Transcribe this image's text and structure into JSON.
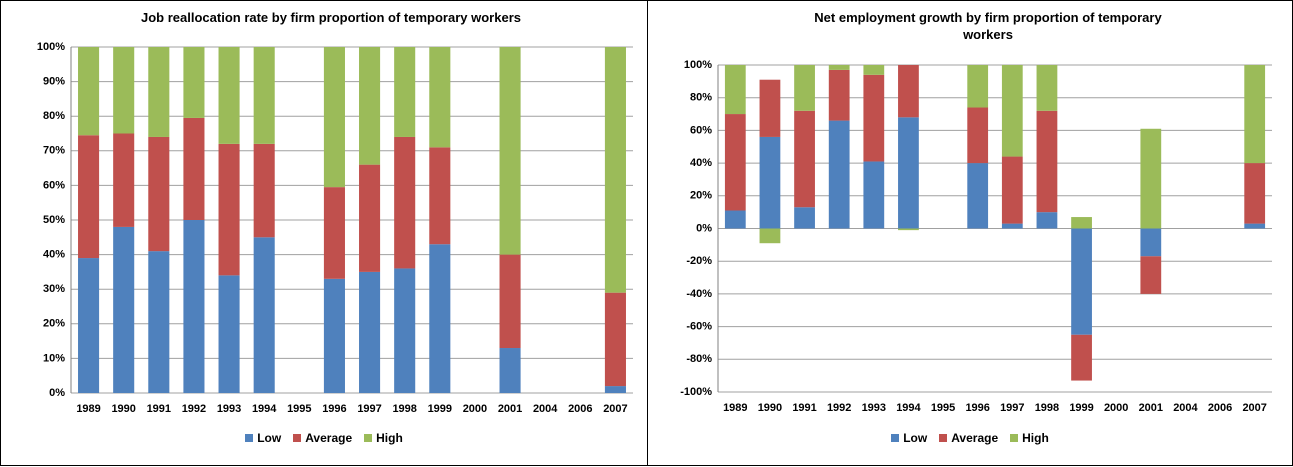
{
  "chart_data": [
    {
      "type": "bar",
      "stacked": true,
      "title": "Job reallocation rate by firm proportion of temporary workers",
      "categories": [
        "1989",
        "1990",
        "1991",
        "1992",
        "1993",
        "1994",
        "1995",
        "1996",
        "1997",
        "1998",
        "1999",
        "2000",
        "2001",
        "2004",
        "2006",
        "2007"
      ],
      "series": [
        {
          "name": "Low",
          "color": "#4f81bd",
          "values": [
            39,
            48,
            41,
            50,
            34,
            45,
            null,
            33,
            35,
            36,
            43,
            null,
            13,
            null,
            null,
            2
          ]
        },
        {
          "name": "Average",
          "color": "#c0504d",
          "values": [
            35.5,
            27,
            33,
            29.5,
            38,
            27,
            null,
            26.5,
            31,
            38,
            28,
            null,
            27,
            null,
            null,
            27
          ]
        },
        {
          "name": "High",
          "color": "#9bbb59",
          "values": [
            25.5,
            25,
            26,
            20.5,
            28,
            28,
            null,
            40.5,
            34,
            26,
            29,
            null,
            60,
            null,
            null,
            71
          ]
        }
      ],
      "ylim": [
        0,
        100
      ],
      "yticks": [
        {
          "value": 0,
          "label": "0%"
        },
        {
          "value": 10,
          "label": "10%"
        },
        {
          "value": 20,
          "label": "20%"
        },
        {
          "value": 30,
          "label": "30%"
        },
        {
          "value": 40,
          "label": "40%"
        },
        {
          "value": 50,
          "label": "50%"
        },
        {
          "value": 60,
          "label": "60%"
        },
        {
          "value": 70,
          "label": "70%"
        },
        {
          "value": 80,
          "label": "80%"
        },
        {
          "value": 90,
          "label": "90%"
        },
        {
          "value": 100,
          "label": "100%"
        }
      ],
      "grid": true,
      "legend": "bottom"
    },
    {
      "type": "bar",
      "stacked": true,
      "title": "Net employment growth by firm proportion of temporary workers",
      "categories": [
        "1989",
        "1990",
        "1991",
        "1992",
        "1993",
        "1994",
        "1995",
        "1996",
        "1997",
        "1998",
        "1999",
        "2000",
        "2001",
        "2004",
        "2006",
        "2007"
      ],
      "series": [
        {
          "name": "Low",
          "color": "#4f81bd",
          "values": [
            11,
            56,
            13,
            66,
            41,
            68,
            null,
            40,
            3,
            10,
            -65,
            null,
            -17,
            null,
            null,
            3
          ]
        },
        {
          "name": "Average",
          "color": "#c0504d",
          "values": [
            59,
            35,
            59,
            31,
            53,
            32,
            null,
            34,
            41,
            62,
            -28,
            null,
            -23,
            null,
            null,
            37
          ]
        },
        {
          "name": "High",
          "color": "#9bbb59",
          "values": [
            30,
            -9,
            28,
            3,
            6,
            -1,
            null,
            26,
            56,
            28,
            7,
            null,
            61,
            null,
            null,
            60
          ]
        }
      ],
      "ylim": [
        -100,
        100
      ],
      "yticks": [
        {
          "value": -100,
          "label": "-100%"
        },
        {
          "value": -80,
          "label": "-80%"
        },
        {
          "value": -60,
          "label": "-60%"
        },
        {
          "value": -40,
          "label": "-40%"
        },
        {
          "value": -20,
          "label": "-20%"
        },
        {
          "value": 0,
          "label": "0%"
        },
        {
          "value": 20,
          "label": "20%"
        },
        {
          "value": 40,
          "label": "40%"
        },
        {
          "value": 60,
          "label": "60%"
        },
        {
          "value": 80,
          "label": "80%"
        },
        {
          "value": 100,
          "label": "100%"
        }
      ],
      "grid": true,
      "legend": "bottom"
    }
  ]
}
